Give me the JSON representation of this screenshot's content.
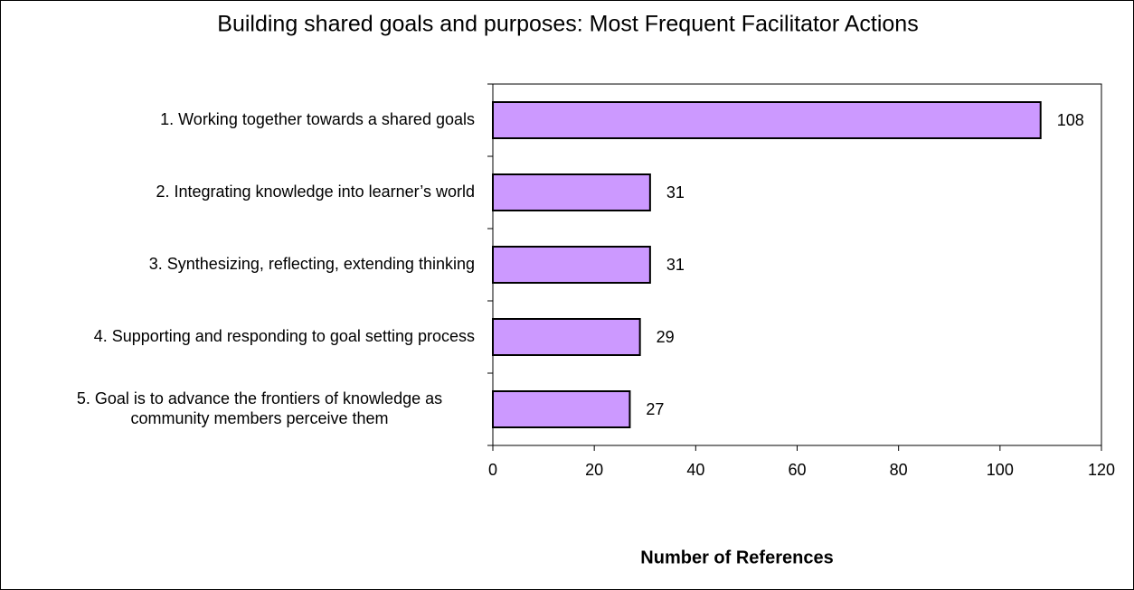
{
  "chart_data": {
    "type": "bar",
    "orientation": "horizontal",
    "title": "Building  shared goals and purposes: Most Frequent Facilitator Actions",
    "x_label": "Number of References",
    "categories": [
      "1. Working together towards a shared goals",
      "2. Integrating knowledge  into learner’s world",
      "3. Synthesizing, reflecting, extending thinking",
      "4. Supporting and responding to goal setting process",
      "5. Goal is to advance the frontiers of knowledge as\ncommunity members perceive them"
    ],
    "values": [
      108,
      31,
      31,
      29,
      27
    ],
    "color": "#cc99ff",
    "xlim": [
      0,
      120
    ],
    "xticks": [
      0,
      20,
      40,
      60,
      80,
      100,
      120
    ],
    "grid": false
  }
}
